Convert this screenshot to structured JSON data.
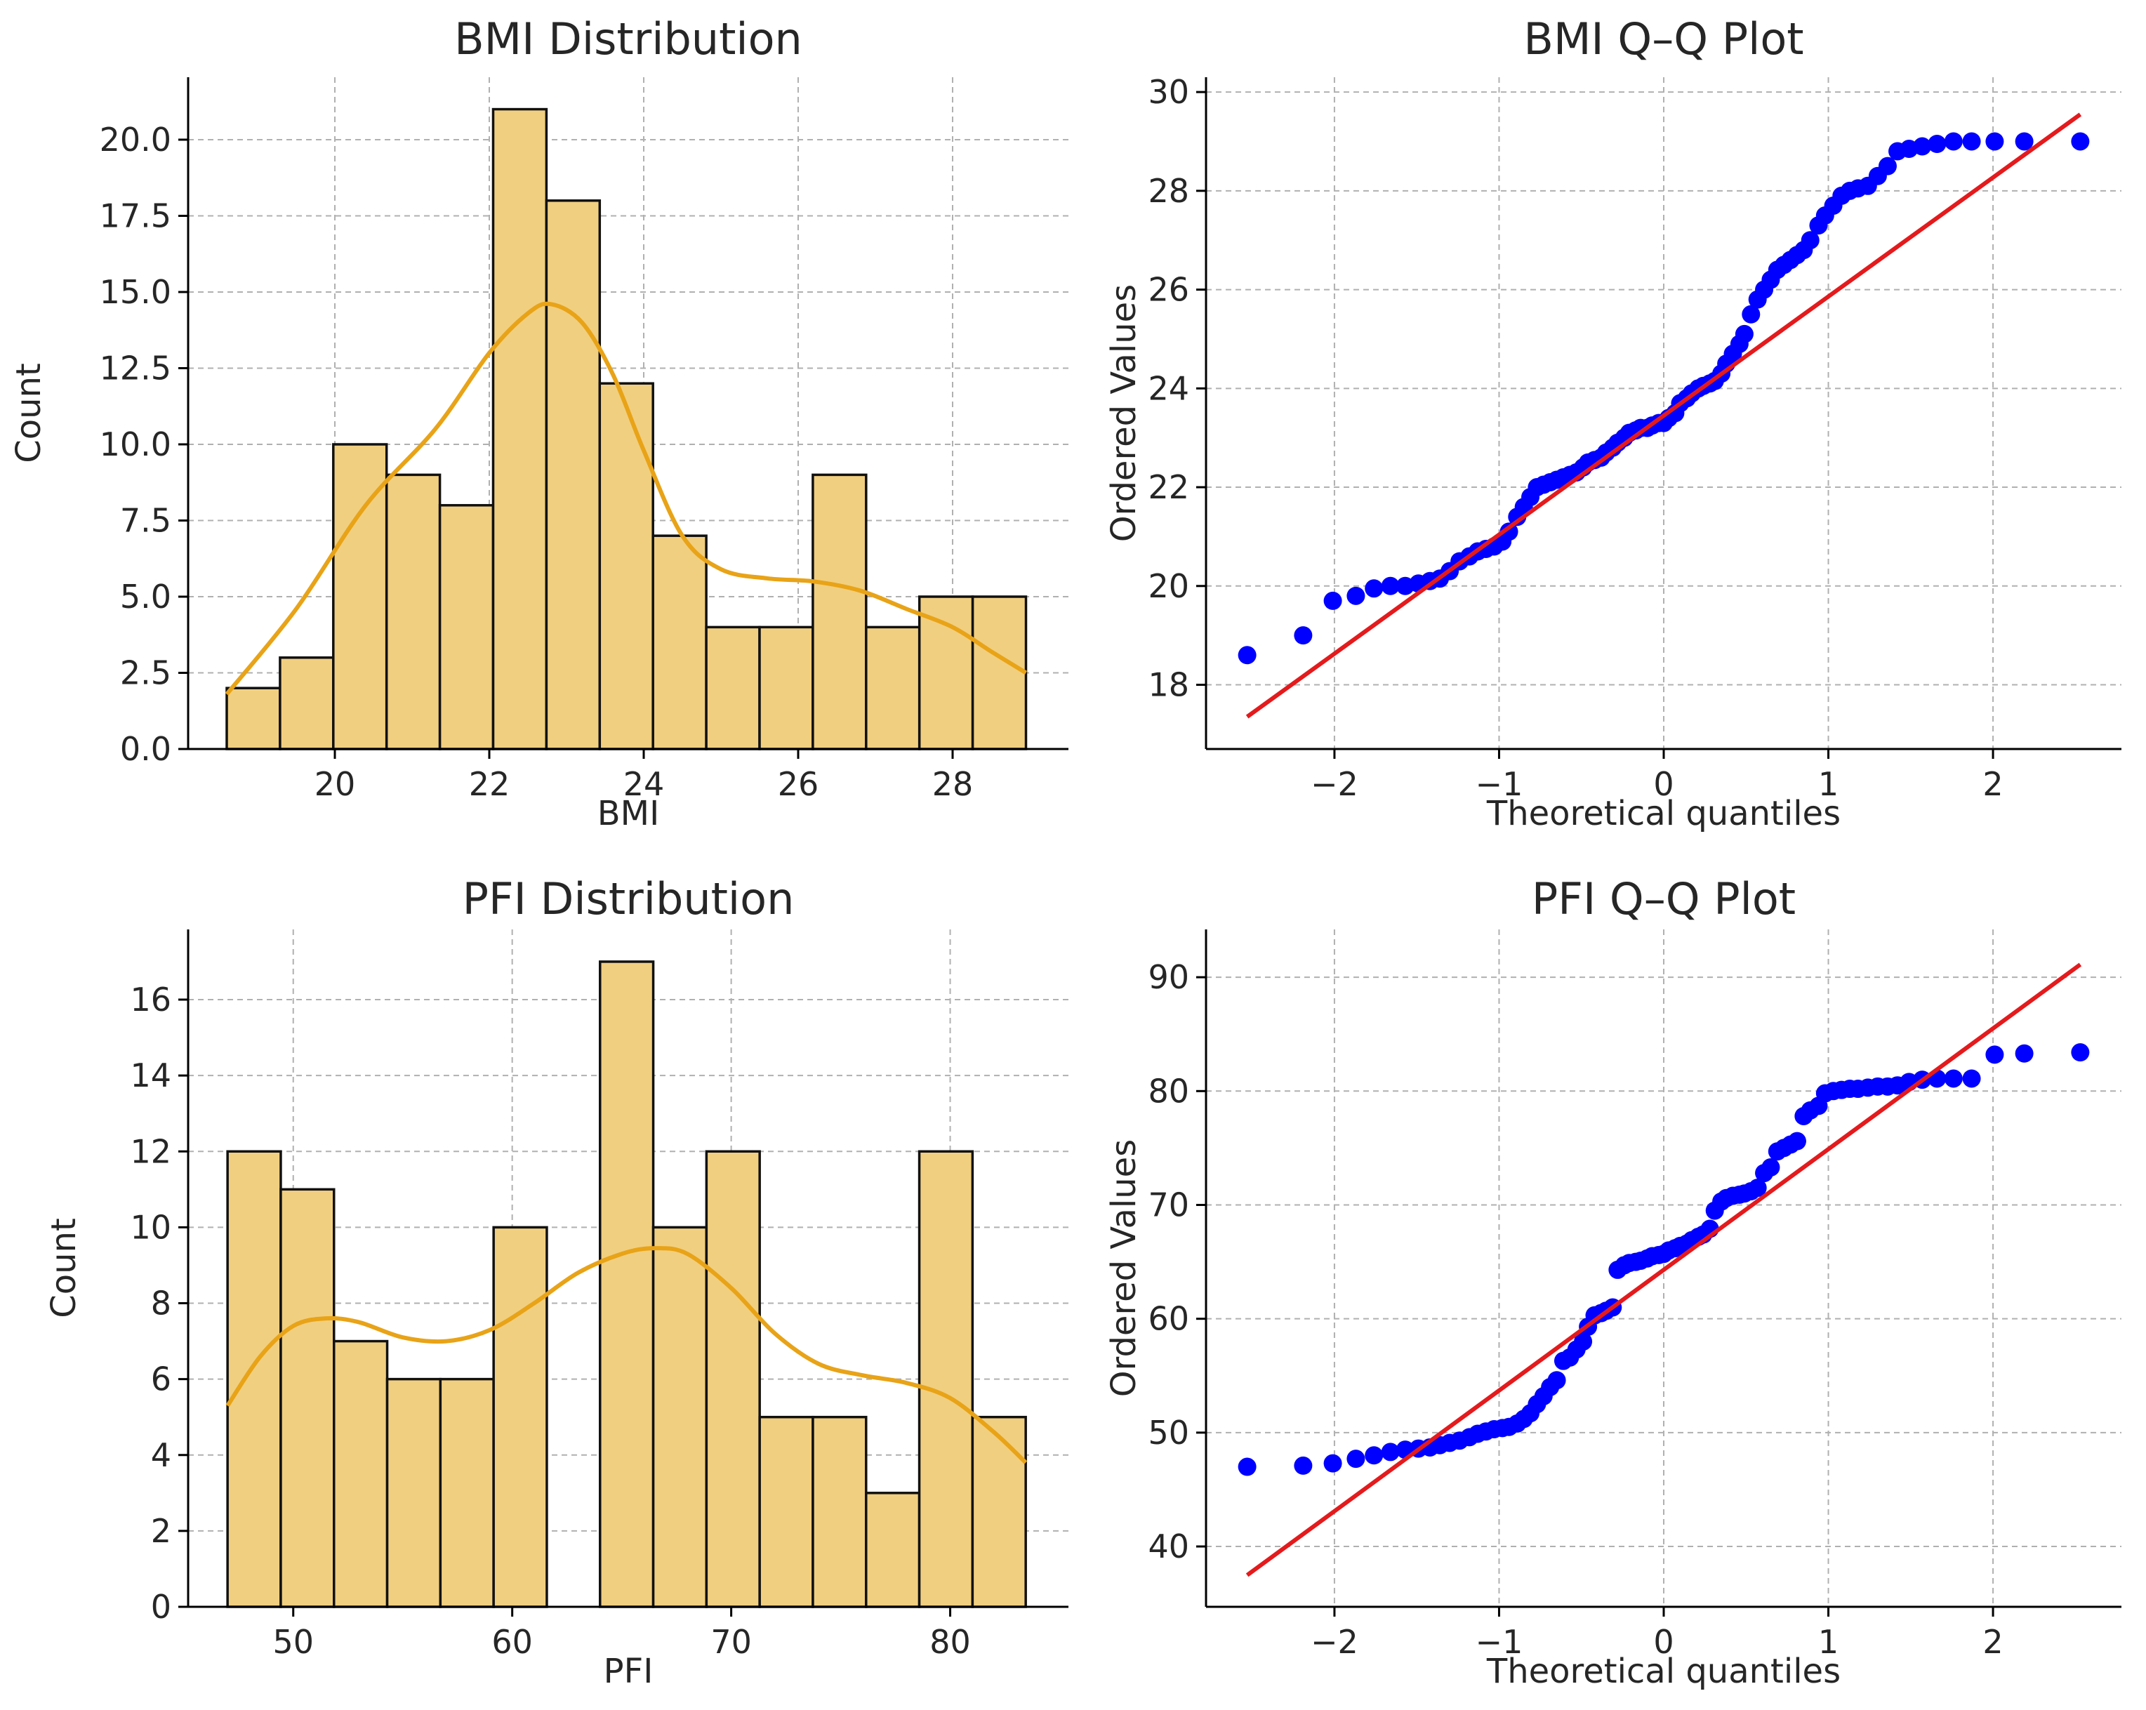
{
  "chart_data": [
    {
      "type": "bar",
      "title": "BMI Distribution",
      "xlabel": "BMI",
      "ylabel": "Count",
      "xlim": [
        18.1,
        29.5
      ],
      "ylim": [
        0,
        22.05
      ],
      "xticks": [
        20,
        22,
        24,
        26,
        28
      ],
      "xtick_labels": [
        "20",
        "22",
        "24",
        "26",
        "28"
      ],
      "yticks": [
        0,
        2.5,
        5,
        7.5,
        10,
        12.5,
        15,
        17.5,
        20
      ],
      "ytick_labels": [
        "0.0",
        "2.5",
        "5.0",
        "7.5",
        "10.0",
        "12.5",
        "15.0",
        "17.5",
        "20.0"
      ],
      "grid": true,
      "bin_edges": [
        18.6,
        19.29,
        19.98,
        20.67,
        21.36,
        22.05,
        22.74,
        23.43,
        24.12,
        24.81,
        25.5,
        26.19,
        26.88,
        27.57,
        28.26,
        28.95
      ],
      "values": [
        2,
        3,
        10,
        9,
        8,
        21,
        18,
        12,
        7,
        4,
        4,
        9,
        4,
        5,
        5
      ],
      "kde": {
        "x": [
          18.6,
          19.5,
          20.4,
          21.3,
          22.0,
          22.5,
          22.8,
          23.2,
          23.6,
          24.0,
          24.5,
          25.0,
          25.6,
          26.2,
          26.8,
          27.4,
          28.0,
          28.5,
          28.95
        ],
        "y": [
          1.8,
          4.6,
          8.0,
          10.5,
          13.0,
          14.3,
          14.6,
          14.0,
          12.3,
          9.8,
          7.0,
          5.9,
          5.6,
          5.5,
          5.2,
          4.6,
          4.0,
          3.2,
          2.5
        ]
      },
      "colors": {
        "bar": "#f1cf80",
        "edge": "#111111",
        "kde": "#e8a317"
      }
    },
    {
      "type": "scatter",
      "title": "BMI Q–Q Plot",
      "xlabel": "Theoretical quantiles",
      "ylabel": "Ordered Values",
      "xlim": [
        -2.78,
        2.78
      ],
      "ylim": [
        16.7,
        30.3
      ],
      "xticks": [
        -2,
        -1,
        0,
        1,
        2
      ],
      "xtick_labels": [
        "−2",
        "−1",
        "0",
        "1",
        "2"
      ],
      "yticks": [
        18,
        20,
        22,
        24,
        26,
        28,
        30
      ],
      "ytick_labels": [
        "18",
        "20",
        "22",
        "24",
        "26",
        "28",
        "30"
      ],
      "grid": true,
      "fit_line": {
        "slope": 2.41,
        "intercept": 23.45,
        "x_range": [
          -2.53,
          2.53
        ]
      },
      "points": {
        "x": [
          -2.53,
          -2.19,
          -2.01,
          -1.87,
          -1.76,
          -1.66,
          -1.57,
          -1.49,
          -1.42,
          -1.36,
          -1.3,
          -1.24,
          -1.18,
          -1.13,
          -1.08,
          -1.03,
          -0.98,
          -0.94,
          -0.89,
          -0.85,
          -0.81,
          -0.77,
          -0.73,
          -0.69,
          -0.65,
          -0.61,
          -0.57,
          -0.53,
          -0.49,
          -0.46,
          -0.42,
          -0.38,
          -0.35,
          -0.31,
          -0.28,
          -0.24,
          -0.21,
          -0.17,
          -0.14,
          -0.1,
          -0.07,
          -0.03,
          0.0,
          0.03,
          0.07,
          0.1,
          0.14,
          0.17,
          0.21,
          0.24,
          0.28,
          0.31,
          0.35,
          0.38,
          0.42,
          0.46,
          0.49,
          0.53,
          0.57,
          0.61,
          0.65,
          0.69,
          0.73,
          0.77,
          0.81,
          0.85,
          0.89,
          0.94,
          0.98,
          1.03,
          1.08,
          1.13,
          1.18,
          1.24,
          1.3,
          1.36,
          1.42,
          1.49,
          1.57,
          1.66,
          1.76,
          1.87,
          2.01,
          2.19,
          2.53
        ],
        "y": [
          18.6,
          19.0,
          19.7,
          19.8,
          19.95,
          20.0,
          20.0,
          20.05,
          20.1,
          20.15,
          20.3,
          20.5,
          20.6,
          20.7,
          20.75,
          20.8,
          20.9,
          21.1,
          21.4,
          21.6,
          21.8,
          22.0,
          22.05,
          22.1,
          22.15,
          22.2,
          22.25,
          22.3,
          22.4,
          22.5,
          22.55,
          22.6,
          22.7,
          22.8,
          22.9,
          23.0,
          23.1,
          23.15,
          23.2,
          23.2,
          23.25,
          23.3,
          23.3,
          23.4,
          23.5,
          23.7,
          23.8,
          23.9,
          24.0,
          24.05,
          24.1,
          24.15,
          24.3,
          24.5,
          24.7,
          24.9,
          25.1,
          25.5,
          25.8,
          26.0,
          26.2,
          26.4,
          26.5,
          26.6,
          26.7,
          26.8,
          27.0,
          27.3,
          27.5,
          27.7,
          27.9,
          28.0,
          28.05,
          28.1,
          28.3,
          28.5,
          28.8,
          28.85,
          28.9,
          28.95,
          29.0,
          29.0,
          29.0,
          29.0,
          29.0
        ]
      },
      "colors": {
        "points": "#0000ff",
        "fit_line": "#e41a1c"
      }
    },
    {
      "type": "bar",
      "title": "PFI Distribution",
      "xlabel": "PFI",
      "ylabel": "Count",
      "xlim": [
        45.2,
        85.4
      ],
      "ylim": [
        0,
        17.85
      ],
      "xticks": [
        50,
        60,
        70,
        80
      ],
      "xtick_labels": [
        "50",
        "60",
        "70",
        "80"
      ],
      "yticks": [
        0,
        2,
        4,
        6,
        8,
        10,
        12,
        14,
        16
      ],
      "ytick_labels": [
        "0",
        "2",
        "4",
        "6",
        "8",
        "10",
        "12",
        "14",
        "16"
      ],
      "grid": true,
      "bin_edges": [
        47.0,
        49.43,
        51.86,
        54.29,
        56.72,
        59.15,
        61.58,
        64.01,
        66.44,
        68.87,
        71.3,
        73.73,
        76.16,
        78.59,
        81.02,
        83.45
      ],
      "values": [
        12,
        11,
        7,
        6,
        6,
        10,
        0,
        17,
        10,
        12,
        5,
        5,
        3,
        12,
        5
      ],
      "kde": {
        "x": [
          47.0,
          48.5,
          50.0,
          51.5,
          53.0,
          55.0,
          57.0,
          59.0,
          61.0,
          63.0,
          65.0,
          66.5,
          68.0,
          70.0,
          72.0,
          74.0,
          76.0,
          78.0,
          80.0,
          82.0,
          83.45
        ],
        "y": [
          5.3,
          6.6,
          7.4,
          7.6,
          7.5,
          7.1,
          7.0,
          7.3,
          8.0,
          8.8,
          9.3,
          9.45,
          9.3,
          8.4,
          7.2,
          6.4,
          6.1,
          5.9,
          5.5,
          4.6,
          3.8
        ]
      },
      "colors": {
        "bar": "#f1cf80",
        "edge": "#111111",
        "kde": "#e8a317"
      }
    },
    {
      "type": "scatter",
      "title": "PFI Q–Q Plot",
      "xlabel": "Theoretical quantiles",
      "ylabel": "Ordered Values",
      "xlim": [
        -2.78,
        2.78
      ],
      "ylim": [
        34.7,
        94.2
      ],
      "xticks": [
        -2,
        -1,
        0,
        1,
        2
      ],
      "xtick_labels": [
        "−2",
        "−1",
        "0",
        "1",
        "2"
      ],
      "yticks": [
        40,
        50,
        60,
        70,
        80,
        90
      ],
      "ytick_labels": [
        "40",
        "50",
        "60",
        "70",
        "80",
        "90"
      ],
      "grid": true,
      "fit_line": {
        "slope": 10.6,
        "intercept": 64.3,
        "x_range": [
          -2.53,
          2.53
        ]
      },
      "points": {
        "x": [
          -2.53,
          -2.19,
          -2.01,
          -1.87,
          -1.76,
          -1.66,
          -1.57,
          -1.49,
          -1.42,
          -1.36,
          -1.3,
          -1.24,
          -1.18,
          -1.13,
          -1.08,
          -1.03,
          -0.98,
          -0.94,
          -0.89,
          -0.85,
          -0.81,
          -0.77,
          -0.73,
          -0.69,
          -0.65,
          -0.61,
          -0.57,
          -0.53,
          -0.49,
          -0.46,
          -0.42,
          -0.38,
          -0.35,
          -0.31,
          -0.28,
          -0.24,
          -0.21,
          -0.17,
          -0.14,
          -0.1,
          -0.07,
          -0.03,
          0.0,
          0.03,
          0.07,
          0.1,
          0.14,
          0.17,
          0.21,
          0.24,
          0.28,
          0.31,
          0.35,
          0.38,
          0.42,
          0.46,
          0.49,
          0.53,
          0.57,
          0.61,
          0.65,
          0.69,
          0.73,
          0.77,
          0.81,
          0.85,
          0.89,
          0.94,
          0.98,
          1.03,
          1.08,
          1.13,
          1.18,
          1.24,
          1.3,
          1.36,
          1.42,
          1.49,
          1.57,
          1.66,
          1.76,
          1.87,
          2.01,
          2.19,
          2.53
        ],
        "y": [
          47.0,
          47.1,
          47.3,
          47.7,
          48.0,
          48.3,
          48.5,
          48.6,
          48.7,
          48.9,
          49.1,
          49.3,
          49.6,
          49.9,
          50.1,
          50.3,
          50.4,
          50.5,
          50.8,
          51.2,
          51.7,
          52.5,
          53.2,
          54.0,
          54.6,
          56.3,
          56.6,
          57.3,
          58.0,
          59.3,
          60.3,
          60.5,
          60.7,
          61.0,
          64.3,
          64.7,
          64.9,
          65.0,
          65.1,
          65.3,
          65.5,
          65.6,
          65.7,
          66.0,
          66.2,
          66.4,
          66.6,
          66.9,
          67.2,
          67.4,
          67.9,
          69.5,
          70.3,
          70.6,
          70.8,
          70.9,
          71.0,
          71.2,
          71.5,
          72.8,
          73.3,
          74.7,
          75.0,
          75.3,
          75.6,
          77.8,
          78.3,
          78.7,
          79.8,
          80.0,
          80.1,
          80.2,
          80.2,
          80.3,
          80.4,
          80.4,
          80.5,
          80.8,
          81.0,
          81.1,
          81.1,
          81.1,
          83.2,
          83.3,
          83.4
        ]
      },
      "colors": {
        "points": "#0000ff",
        "fit_line": "#e41a1c"
      }
    }
  ]
}
